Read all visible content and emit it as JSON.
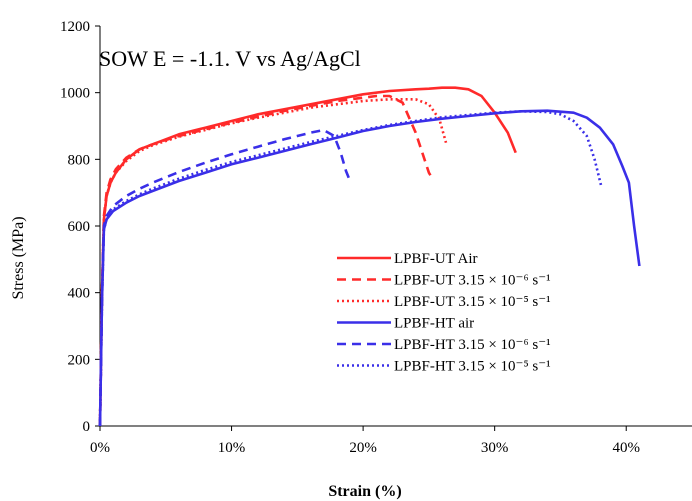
{
  "chart_data": {
    "type": "line",
    "title": "",
    "annotation": "SOW E = -1.1. V vs Ag/AgCl",
    "xlabel": "Strain (%)",
    "ylabel": "Stress (MPa)",
    "xlim": [
      0,
      45
    ],
    "ylim": [
      0,
      1200
    ],
    "x_ticks": [
      0,
      10,
      20,
      30,
      40
    ],
    "x_tick_labels": [
      "0%",
      "10%",
      "20%",
      "30%",
      "40%"
    ],
    "y_ticks": [
      0,
      200,
      400,
      600,
      800,
      1000,
      1200
    ],
    "y_tick_labels": [
      "0",
      "200",
      "400",
      "600",
      "800",
      "1000",
      "1200"
    ],
    "grid": false,
    "legend_position": "bottom-right",
    "series": [
      {
        "name": "LPBF-UT Air",
        "color": "#ff2a2a",
        "dash": "solid",
        "x": [
          0,
          0.15,
          0.3,
          0.5,
          0.8,
          1.2,
          2,
          3,
          4,
          5,
          6,
          8,
          10,
          12,
          14,
          16,
          18,
          20,
          22,
          24,
          25,
          26,
          27,
          28,
          29,
          30,
          31,
          31.6
        ],
        "y": [
          0,
          400,
          620,
          690,
          730,
          760,
          800,
          830,
          845,
          860,
          875,
          895,
          915,
          935,
          950,
          965,
          980,
          995,
          1005,
          1010,
          1012,
          1015,
          1015,
          1010,
          990,
          940,
          880,
          820
        ]
      },
      {
        "name": "LPBF-UT 3.15 × 10⁻⁶ s⁻¹",
        "color": "#ff2a2a",
        "dash": "dashed",
        "x": [
          0,
          0.15,
          0.3,
          0.5,
          0.8,
          1.2,
          2,
          3,
          4,
          5,
          6,
          8,
          10,
          12,
          14,
          16,
          18,
          20,
          21,
          22,
          23,
          24,
          24.5,
          25,
          25.3
        ],
        "y": [
          0,
          400,
          630,
          700,
          740,
          770,
          805,
          830,
          845,
          858,
          870,
          890,
          910,
          928,
          945,
          960,
          975,
          985,
          990,
          990,
          970,
          880,
          820,
          760,
          740
        ]
      },
      {
        "name": "LPBF-UT 3.15 × 10⁻⁵ s⁻¹",
        "color": "#ff2a2a",
        "dash": "dotted",
        "x": [
          0,
          0.15,
          0.3,
          0.5,
          0.8,
          1.2,
          2,
          3,
          4,
          5,
          6,
          8,
          10,
          12,
          14,
          16,
          18,
          20,
          22,
          24,
          25,
          25.8,
          26.3
        ],
        "y": [
          0,
          400,
          620,
          690,
          730,
          760,
          795,
          825,
          842,
          855,
          868,
          888,
          908,
          925,
          940,
          955,
          965,
          975,
          980,
          980,
          965,
          920,
          850
        ]
      },
      {
        "name": "LPBF-HT air",
        "color": "#3a2fe8",
        "dash": "solid",
        "x": [
          0,
          0.15,
          0.3,
          0.5,
          1,
          2,
          3,
          4,
          6,
          8,
          10,
          12,
          14,
          16,
          18,
          20,
          22,
          24,
          26,
          28,
          30,
          32,
          34,
          36,
          37,
          38,
          39,
          39.7,
          40.2,
          40.6,
          41
        ],
        "y": [
          0,
          380,
          590,
          620,
          645,
          670,
          690,
          705,
          735,
          760,
          785,
          805,
          825,
          845,
          865,
          885,
          900,
          912,
          922,
          930,
          938,
          944,
          946,
          940,
          925,
          895,
          845,
          780,
          730,
          600,
          480
        ]
      },
      {
        "name": "LPBF-HT 3.15 × 10⁻⁶ s⁻¹",
        "color": "#3a2fe8",
        "dash": "dashed",
        "x": [
          0,
          0.15,
          0.3,
          0.5,
          1,
          2,
          3,
          4,
          6,
          8,
          10,
          12,
          14,
          16,
          17,
          17.8,
          18.3,
          18.7,
          19
        ],
        "y": [
          0,
          380,
          600,
          630,
          660,
          690,
          712,
          730,
          762,
          790,
          815,
          838,
          860,
          880,
          888,
          870,
          820,
          765,
          735
        ]
      },
      {
        "name": "LPBF-HT 3.15 × 10⁻⁵ s⁻¹",
        "color": "#3a2fe8",
        "dash": "dotted",
        "x": [
          0,
          0.15,
          0.3,
          0.5,
          1,
          2,
          3,
          4,
          6,
          8,
          10,
          12,
          14,
          16,
          18,
          20,
          22,
          24,
          26,
          28,
          30,
          32,
          34,
          35,
          36,
          37,
          37.6,
          38.1
        ],
        "y": [
          0,
          380,
          590,
          620,
          650,
          675,
          695,
          712,
          742,
          768,
          792,
          812,
          832,
          852,
          870,
          888,
          903,
          915,
          926,
          933,
          940,
          944,
          942,
          935,
          915,
          870,
          800,
          720
        ]
      }
    ]
  }
}
